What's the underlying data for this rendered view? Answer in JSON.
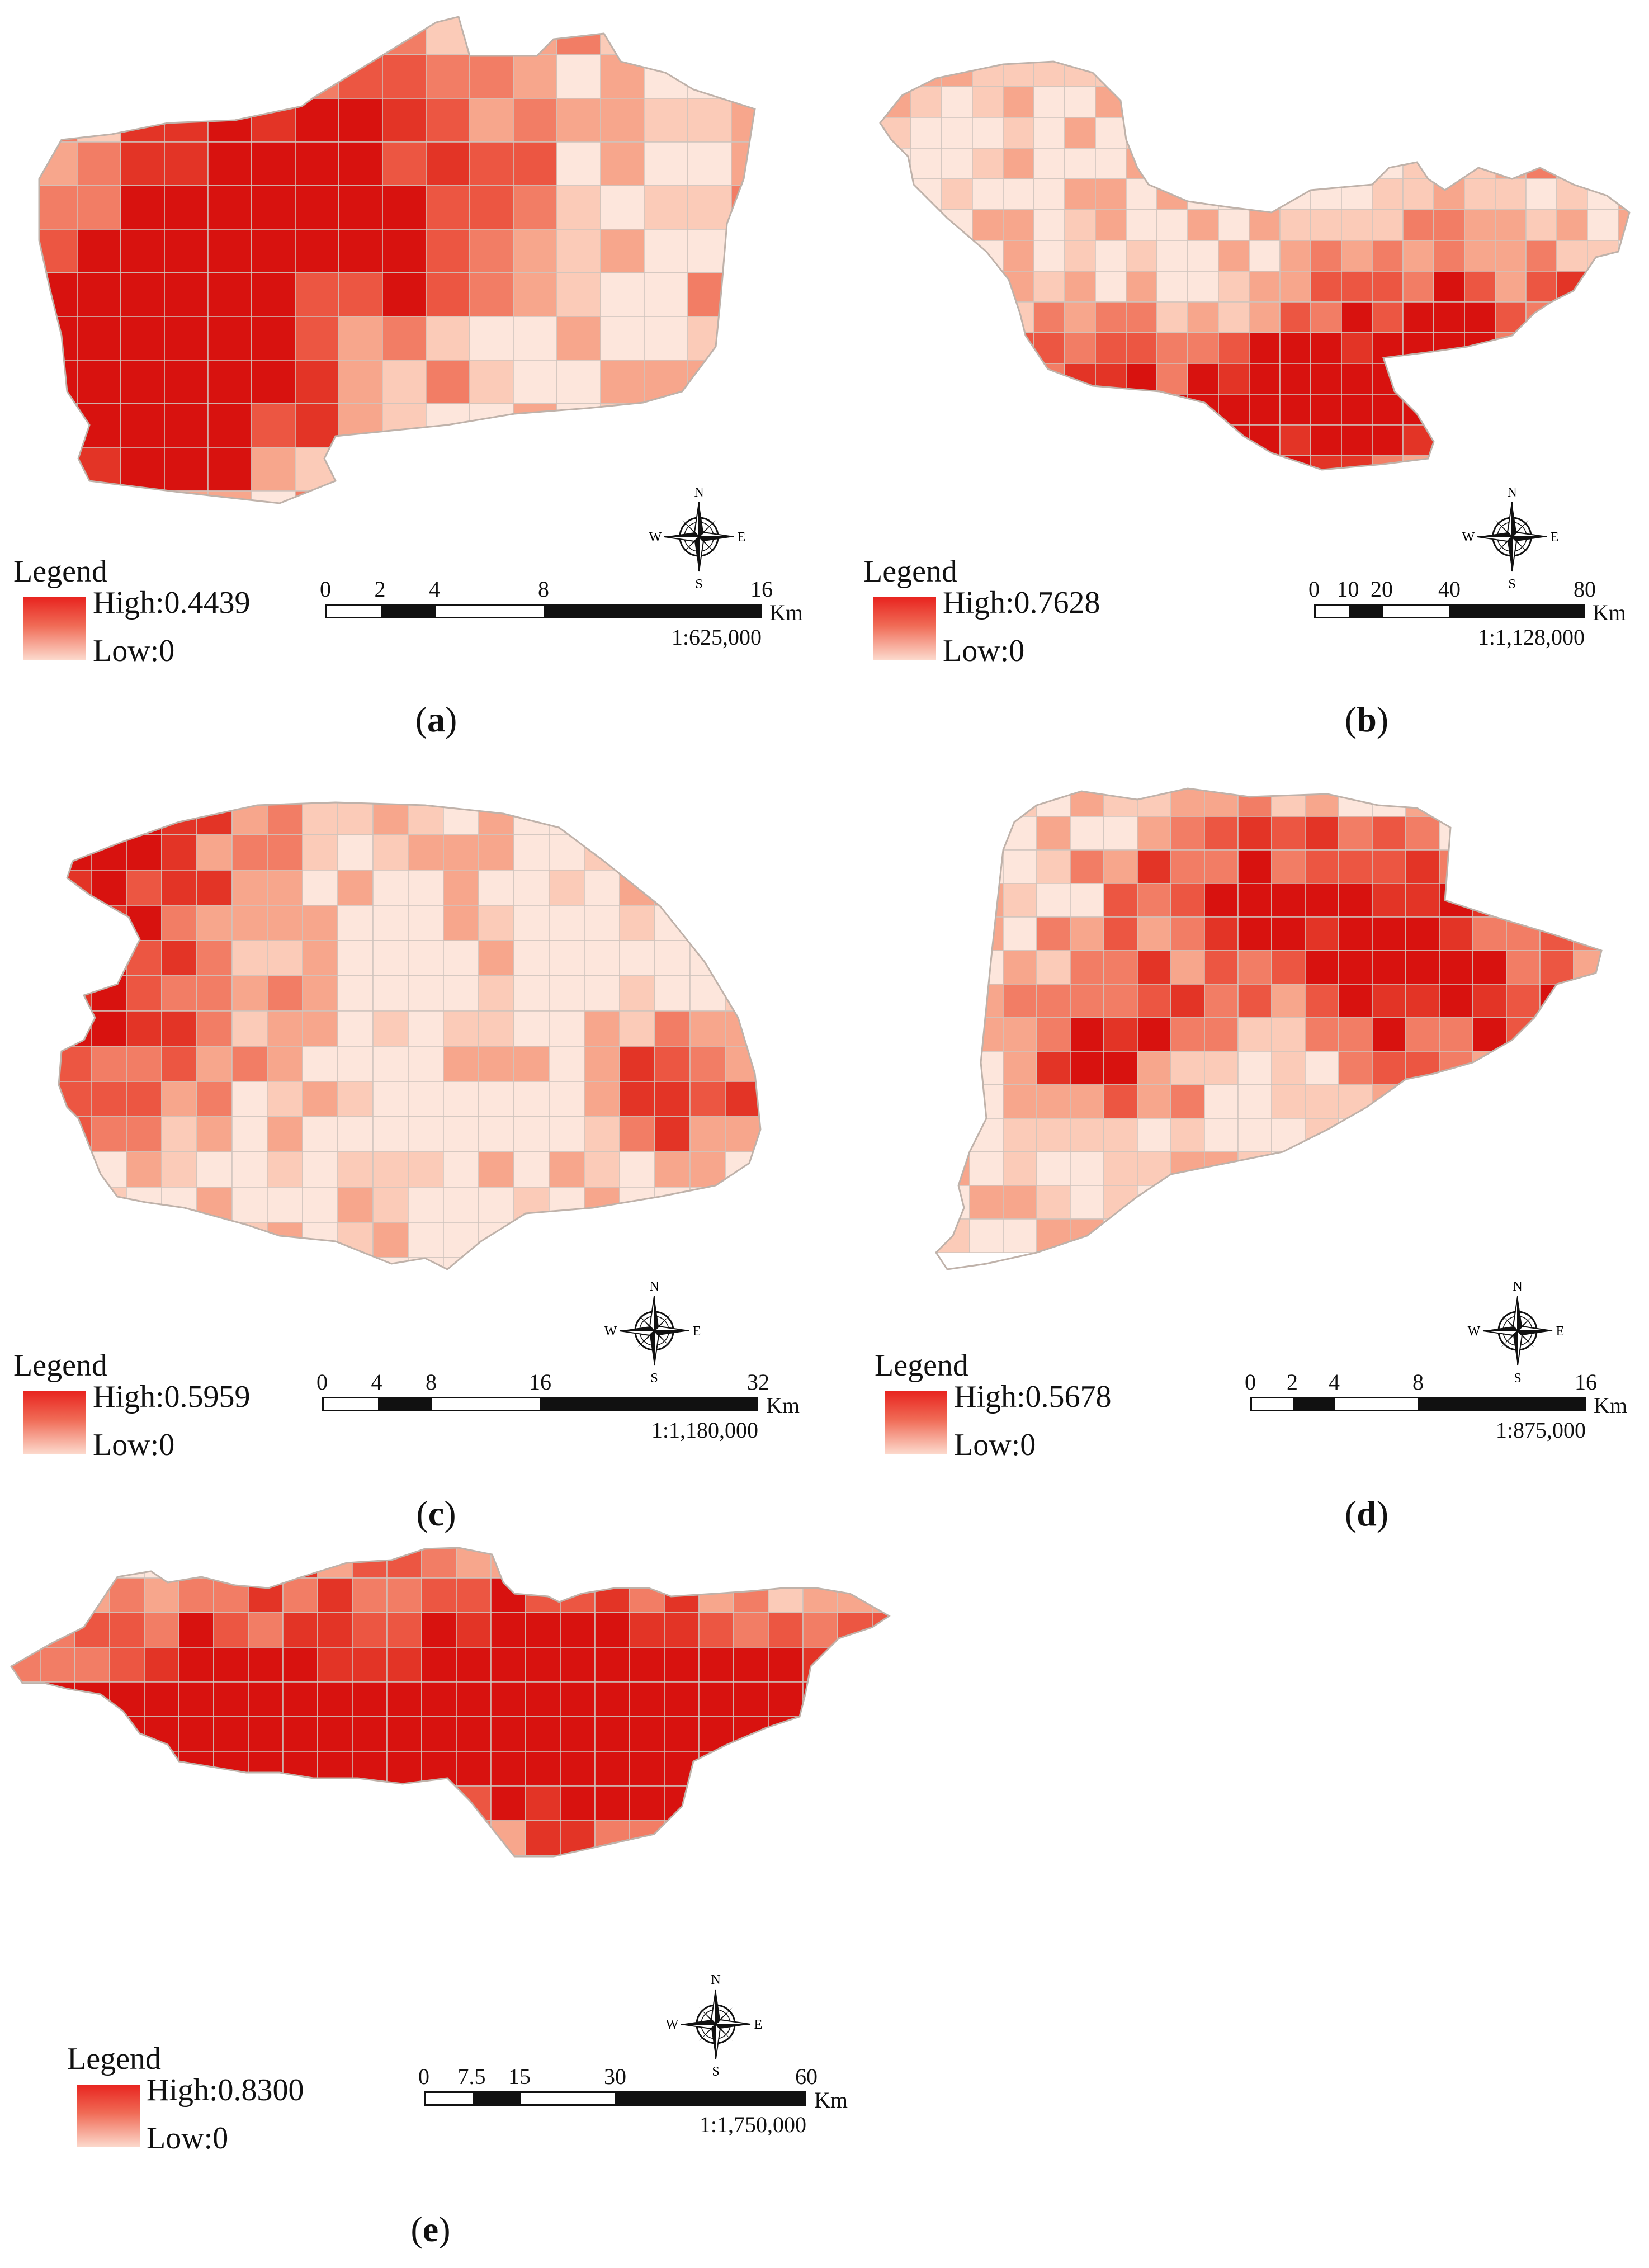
{
  "panels": [
    {
      "id": "a",
      "caption_letter": "a",
      "legend": {
        "title": "Legend",
        "high": "High:0.4439",
        "low": "Low:0"
      },
      "scale": {
        "ticks": [
          "0",
          "2",
          "4",
          "8",
          "16"
        ],
        "unit": "Km",
        "ratio": "1:625,000"
      },
      "compass": {
        "n": "N",
        "s": "S",
        "e": "E",
        "w": "W"
      }
    },
    {
      "id": "b",
      "caption_letter": "b",
      "legend": {
        "title": "Legend",
        "high": "High:0.7628",
        "low": "Low:0"
      },
      "scale": {
        "ticks": [
          "0",
          "10",
          "20",
          "40",
          "80"
        ],
        "unit": "Km",
        "ratio": "1:1,128,000"
      },
      "compass": {
        "n": "N",
        "s": "S",
        "e": "E",
        "w": "W"
      }
    },
    {
      "id": "c",
      "caption_letter": "c",
      "legend": {
        "title": "Legend",
        "high": "High:0.5959",
        "low": "Low:0"
      },
      "scale": {
        "ticks": [
          "0",
          "4",
          "8",
          "16",
          "32"
        ],
        "unit": "Km",
        "ratio": "1:1,180,000"
      },
      "compass": {
        "n": "N",
        "s": "S",
        "e": "E",
        "w": "W"
      }
    },
    {
      "id": "d",
      "caption_letter": "d",
      "legend": {
        "title": "Legend",
        "high": "High:0.5678",
        "low": "Low:0"
      },
      "scale": {
        "ticks": [
          "0",
          "2",
          "4",
          "8",
          "16"
        ],
        "unit": "Km",
        "ratio": "1:875,000"
      },
      "compass": {
        "n": "N",
        "s": "S",
        "e": "E",
        "w": "W"
      }
    },
    {
      "id": "e",
      "caption_letter": "e",
      "legend": {
        "title": "Legend",
        "high": "High:0.8300",
        "low": "Low:0"
      },
      "scale": {
        "ticks": [
          "0",
          "7.5",
          "15",
          "30",
          "60"
        ],
        "unit": "Km",
        "ratio": "1:1,750,000"
      },
      "compass": {
        "n": "N",
        "s": "S",
        "e": "E",
        "w": "W"
      }
    }
  ],
  "colors": {
    "ramp": [
      "#fde6dc",
      "#fbcbb8",
      "#f7a68c",
      "#f27d65",
      "#ec5642",
      "#e33426",
      "#d8120f"
    ],
    "cell_stroke": "#cfc4bd",
    "outline": "#bfb2aa"
  }
}
